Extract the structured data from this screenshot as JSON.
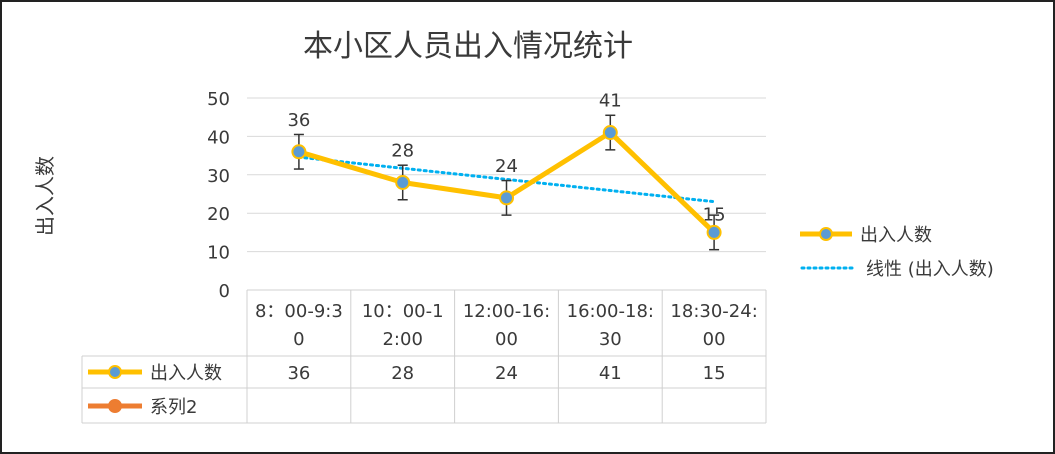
{
  "chart_data": {
    "type": "line",
    "title": "本小区人员出入情况统计",
    "ylabel": "出入人数",
    "xlabel": "",
    "ylim": [
      0,
      50
    ],
    "yticks": [
      0,
      10,
      20,
      30,
      40,
      50
    ],
    "categories": [
      "8：00-9:30",
      "10：00-12:00",
      "12:00-16:00",
      "16:00-18:30",
      "18:30-24:00"
    ],
    "category_lines": [
      [
        "8：00-9:3",
        "0"
      ],
      [
        "10：00-1",
        "2:00"
      ],
      [
        "12:00-16:",
        "00"
      ],
      [
        "16:00-18:",
        "30"
      ],
      [
        "18:30-24:",
        "00"
      ]
    ],
    "series": [
      {
        "name": "出入人数",
        "values": [
          36,
          28,
          24,
          41,
          15
        ],
        "color": "#FFC000",
        "marker_color": "#5B9BD5",
        "data_labels": true,
        "error_bars": 4.5
      },
      {
        "name": "系列2",
        "values": [
          null,
          null,
          null,
          null,
          null
        ],
        "color": "#ED7D31"
      }
    ],
    "trendline": {
      "name": "线性 (出入人数)",
      "type": "linear",
      "of_series": "出入人数",
      "color": "#00B0F0",
      "style": "dotted"
    },
    "legend": {
      "position": "right",
      "entries": [
        "出入人数",
        "线性 (出入人数)"
      ]
    },
    "data_table": true,
    "grid": true
  }
}
